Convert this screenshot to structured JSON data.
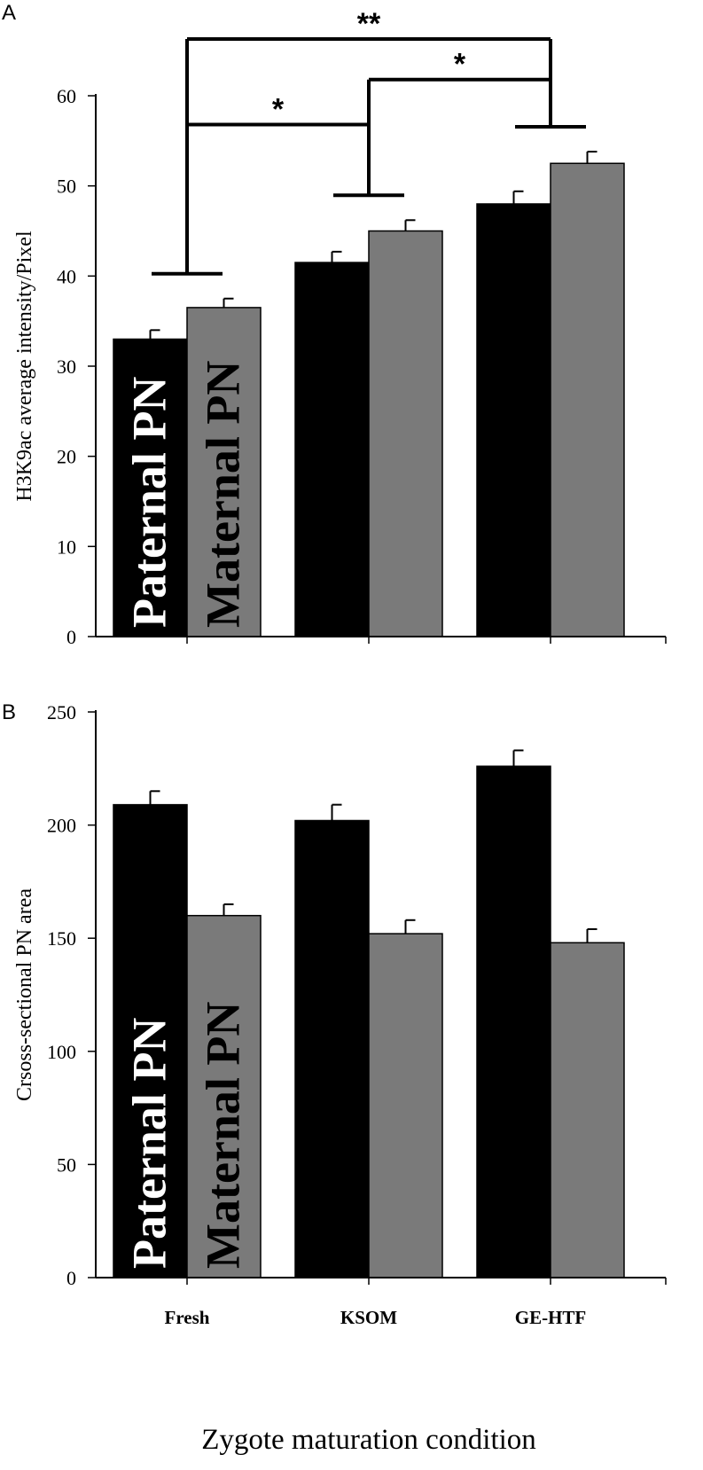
{
  "figure": {
    "xlabel": "Zygote maturation condition"
  },
  "colors": {
    "paternal": "#000000",
    "maternal": "#7a7a7a",
    "axis": "#000000"
  },
  "chart_data": [
    {
      "panel_label": "A",
      "type": "bar",
      "ylabel": "H3K9ac  average intensity/Pixel",
      "ylim": [
        0,
        60
      ],
      "yticks": [
        "0",
        "10",
        "20",
        "30",
        "40",
        "50",
        "60"
      ],
      "categories": [
        "Fresh",
        "KSOM",
        "GE-HTF"
      ],
      "series": [
        {
          "name": "Paternal PN",
          "values": [
            33,
            41.5,
            48
          ],
          "errors": [
            1.0,
            1.2,
            1.4
          ]
        },
        {
          "name": "Maternal PN",
          "values": [
            36.5,
            45,
            52.5
          ],
          "errors": [
            1.0,
            1.2,
            1.3
          ]
        }
      ],
      "significance": [
        {
          "from": "Fresh",
          "to": "KSOM",
          "label": "*"
        },
        {
          "from": "KSOM",
          "to": "GE-HTF",
          "label": "*"
        },
        {
          "from": "Fresh",
          "to": "GE-HTF",
          "label": "**"
        }
      ],
      "grid": false
    },
    {
      "panel_label": "B",
      "type": "bar",
      "ylabel": "Crsoss-sectional PN area",
      "ylim": [
        0,
        250
      ],
      "yticks": [
        "0",
        "50",
        "100",
        "150",
        "200",
        "250"
      ],
      "categories": [
        "Fresh",
        "KSOM",
        "GE-HTF"
      ],
      "series": [
        {
          "name": "Paternal PN",
          "values": [
            209,
            202,
            226
          ],
          "errors": [
            6,
            7,
            7
          ]
        },
        {
          "name": "Maternal PN",
          "values": [
            160,
            152,
            148
          ],
          "errors": [
            5,
            6,
            6
          ]
        }
      ],
      "grid": false
    }
  ]
}
